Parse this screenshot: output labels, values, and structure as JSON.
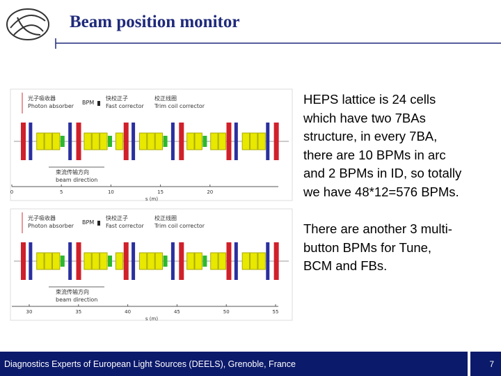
{
  "header": {
    "title": "Beam position monitor"
  },
  "figures": [
    {
      "labels": {
        "absorber_cn": "光子吸收器",
        "absorber_en": "Photon absorber",
        "bpm": "BPM",
        "fast_cn": "快校正子",
        "fast_en": "Fast corrector",
        "trim_cn": "校正线圈",
        "trim_en": "Trim coil corrector",
        "dir_cn": "束流传输方向",
        "dir_en": "beam direction"
      },
      "ticks": [
        "0",
        "5",
        "10",
        "15",
        "20"
      ],
      "axis_label": "s (m)"
    },
    {
      "labels": {
        "absorber_cn": "光子吸收器",
        "absorber_en": "Photon absorber",
        "bpm": "BPM",
        "fast_cn": "快校正子",
        "fast_en": "Fast corrector",
        "trim_cn": "校正线圈",
        "trim_en": "Trim coil corrector",
        "dir_cn": "束流传输方向",
        "dir_en": "beam direction"
      },
      "ticks": [
        "30",
        "35",
        "40",
        "45",
        "50",
        "55"
      ],
      "axis_label": "s (m)"
    }
  ],
  "body": {
    "paragraphs": [
      [
        "HEPS lattice is 24 cells",
        "which have two 7BAs",
        "structure, in every 7BA,",
        "there are 10 BPMs in arc",
        "and 2 BPMs in ID, so totally",
        "we have 48*12=576 BPMs."
      ],
      [
        "There are another 3 multi-",
        "button BPMs for Tune,",
        "BCM and FBs."
      ]
    ]
  },
  "footer": {
    "text": "Diagnostics Experts of European Light Sources (DEELS), Grenoble, France",
    "page": "7"
  }
}
